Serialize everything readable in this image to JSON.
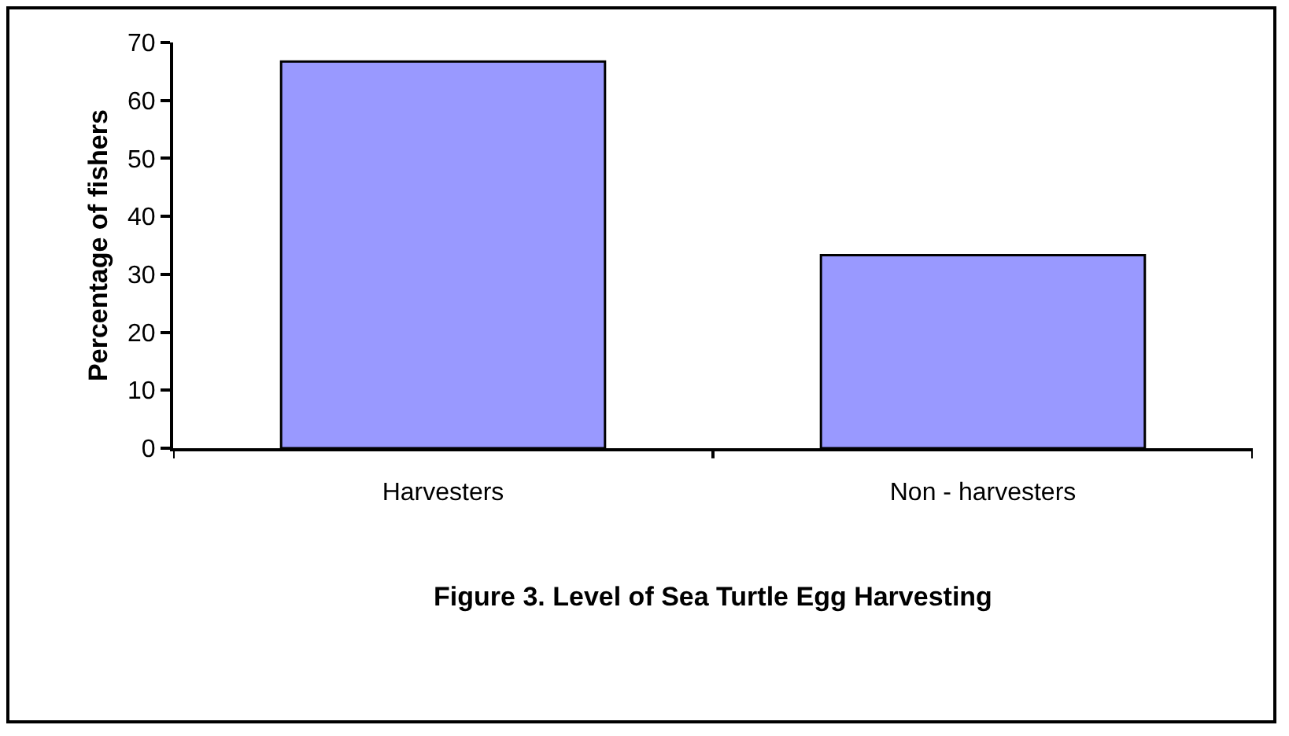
{
  "chart_data": {
    "type": "bar",
    "title": "Figure 3. Level of Sea Turtle Egg Harvesting",
    "ylabel": "Percentage of fishers",
    "categories": [
      "Harvesters",
      "Non - harvesters"
    ],
    "values": [
      66.7,
      33.3
    ],
    "color": "#9999ff",
    "ylim": [
      0,
      70
    ],
    "yticks": [
      0,
      10,
      20,
      30,
      40,
      50,
      60,
      70
    ],
    "grid": false
  }
}
